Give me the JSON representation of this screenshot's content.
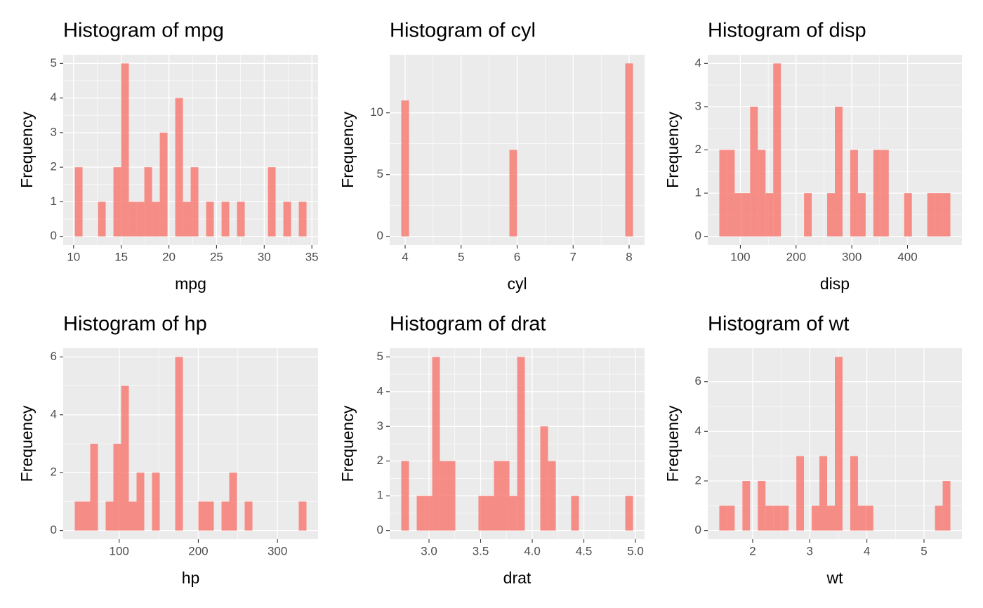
{
  "chart_data": [
    {
      "type": "histogram",
      "title": "Histogram of mpg",
      "x_label": "mpg",
      "y_label": "Frequency",
      "color": "#F8766D",
      "grid": true,
      "bins": [
        10.129,
        10.939,
        11.75,
        12.56,
        13.37,
        14.181,
        14.991,
        15.801,
        16.612,
        17.422,
        18.232,
        19.043,
        19.853,
        20.663,
        21.474,
        22.284,
        23.094,
        23.905,
        24.715,
        25.525,
        26.336,
        27.146,
        27.956,
        28.767,
        29.577,
        30.388,
        31.198,
        32.008,
        32.819,
        33.629,
        34.439
      ],
      "counts": [
        2,
        0,
        0,
        1,
        0,
        2,
        5,
        1,
        1,
        2,
        1,
        3,
        0,
        4,
        1,
        2,
        0,
        1,
        0,
        1,
        0,
        1,
        0,
        0,
        0,
        2,
        0,
        1,
        0,
        1
      ],
      "xlim": [
        8.91,
        35.65
      ],
      "xticks": [
        10,
        15,
        20,
        25,
        30,
        35
      ],
      "ylim": [
        -0.25,
        5.25
      ],
      "yticks": [
        0,
        1,
        2,
        3,
        4,
        5
      ]
    },
    {
      "type": "histogram",
      "title": "Histogram of cyl",
      "x_label": "cyl",
      "y_label": "Frequency",
      "color": "#F8766D",
      "grid": true,
      "bins": [
        3.931,
        4.069,
        4.207,
        4.345,
        4.483,
        4.621,
        4.759,
        4.897,
        5.034,
        5.172,
        5.31,
        5.448,
        5.586,
        5.724,
        5.862,
        6.0,
        6.138,
        6.276,
        6.414,
        6.552,
        6.69,
        6.828,
        6.966,
        7.103,
        7.241,
        7.379,
        7.517,
        7.655,
        7.793,
        7.931,
        8.069
      ],
      "counts": [
        11,
        0,
        0,
        0,
        0,
        0,
        0,
        0,
        0,
        0,
        0,
        0,
        0,
        0,
        7,
        0,
        0,
        0,
        0,
        0,
        0,
        0,
        0,
        0,
        0,
        0,
        0,
        0,
        0,
        14
      ],
      "xlim": [
        3.724,
        8.276
      ],
      "xticks": [
        4,
        5,
        6,
        7,
        8
      ],
      "ylim": [
        -0.7,
        14.7
      ],
      "yticks": [
        0,
        5,
        10
      ]
    },
    {
      "type": "histogram",
      "title": "Histogram of disp",
      "x_label": "disp",
      "y_label": "Frequency",
      "color": "#F8766D",
      "grid": true,
      "bins": [
        62.21,
        76.03,
        89.86,
        103.68,
        117.5,
        131.33,
        145.15,
        158.98,
        172.8,
        186.63,
        200.45,
        214.27,
        228.1,
        241.92,
        255.75,
        269.57,
        283.39,
        297.22,
        311.04,
        324.87,
        338.69,
        352.51,
        366.34,
        380.16,
        393.99,
        407.81,
        421.63,
        435.46,
        449.28,
        463.11,
        476.93
      ],
      "counts": [
        2,
        2,
        1,
        1,
        3,
        2,
        1,
        4,
        0,
        0,
        0,
        1,
        0,
        0,
        1,
        3,
        0,
        2,
        1,
        0,
        2,
        2,
        0,
        0,
        1,
        0,
        0,
        1,
        1,
        1
      ],
      "xlim": [
        41.47,
        497.67
      ],
      "xticks": [
        100,
        200,
        300,
        400
      ],
      "ylim": [
        -0.2,
        4.2
      ],
      "yticks": [
        0,
        1,
        2,
        3,
        4
      ]
    },
    {
      "type": "histogram",
      "title": "Histogram of hp",
      "x_label": "hp",
      "y_label": "Frequency",
      "color": "#F8766D",
      "grid": true,
      "bins": [
        43.91,
        53.67,
        63.43,
        73.19,
        82.95,
        92.71,
        102.47,
        112.22,
        121.98,
        131.74,
        141.5,
        151.26,
        161.02,
        170.78,
        180.53,
        190.29,
        200.05,
        209.81,
        219.57,
        229.33,
        239.09,
        248.84,
        258.6,
        268.36,
        278.12,
        287.88,
        297.64,
        307.4,
        317.16,
        326.91,
        336.67
      ],
      "counts": [
        1,
        1,
        3,
        0,
        1,
        3,
        5,
        1,
        2,
        0,
        2,
        0,
        0,
        6,
        0,
        0,
        1,
        1,
        0,
        1,
        2,
        0,
        1,
        0,
        0,
        0,
        0,
        0,
        0,
        1
      ],
      "xlim": [
        29.28,
        351.31
      ],
      "xticks": [
        100,
        200,
        300
      ],
      "ylim": [
        -0.3,
        6.3
      ],
      "yticks": [
        0,
        2,
        4,
        6
      ]
    },
    {
      "type": "histogram",
      "title": "Histogram of drat",
      "x_label": "drat",
      "y_label": "Frequency",
      "color": "#F8766D",
      "grid": true,
      "bins": [
        2.731,
        2.806,
        2.881,
        2.956,
        3.031,
        3.105,
        3.18,
        3.255,
        3.33,
        3.405,
        3.479,
        3.554,
        3.629,
        3.704,
        3.779,
        3.854,
        3.928,
        4.003,
        4.078,
        4.153,
        4.228,
        4.303,
        4.377,
        4.452,
        4.527,
        4.602,
        4.677,
        4.752,
        4.826,
        4.901,
        4.976
      ],
      "counts": [
        2,
        0,
        1,
        1,
        5,
        2,
        2,
        0,
        0,
        0,
        1,
        1,
        2,
        2,
        1,
        5,
        0,
        0,
        3,
        2,
        0,
        0,
        1,
        0,
        0,
        0,
        0,
        0,
        0,
        1
      ],
      "xlim": [
        2.619,
        5.088
      ],
      "xticks": [
        {
          "value": 3,
          "label": "3.0"
        },
        3.5,
        {
          "value": 4,
          "label": "4.0"
        },
        4.5,
        {
          "value": 5,
          "label": "5.0"
        }
      ],
      "ylim": [
        -0.25,
        5.25
      ],
      "yticks": [
        0,
        1,
        2,
        3,
        4,
        5
      ]
    },
    {
      "type": "histogram",
      "title": "Histogram of wt",
      "x_label": "wt",
      "y_label": "Frequency",
      "color": "#F8766D",
      "grid": true,
      "bins": [
        1.416,
        1.551,
        1.686,
        1.821,
        1.955,
        2.09,
        2.225,
        2.36,
        2.495,
        2.63,
        2.765,
        2.899,
        3.034,
        3.169,
        3.304,
        3.439,
        3.574,
        3.709,
        3.844,
        3.978,
        4.113,
        4.248,
        4.383,
        4.518,
        4.653,
        4.788,
        4.922,
        5.057,
        5.192,
        5.327,
        5.462
      ],
      "counts": [
        1,
        1,
        0,
        2,
        0,
        2,
        1,
        1,
        1,
        0,
        3,
        0,
        1,
        3,
        1,
        7,
        0,
        3,
        1,
        1,
        0,
        0,
        0,
        0,
        0,
        0,
        0,
        0,
        1,
        2
      ],
      "xlim": [
        1.214,
        5.664
      ],
      "xticks": [
        2,
        3,
        4,
        5
      ],
      "ylim": [
        -0.35,
        7.35
      ],
      "yticks": [
        0,
        2,
        4,
        6
      ]
    }
  ]
}
